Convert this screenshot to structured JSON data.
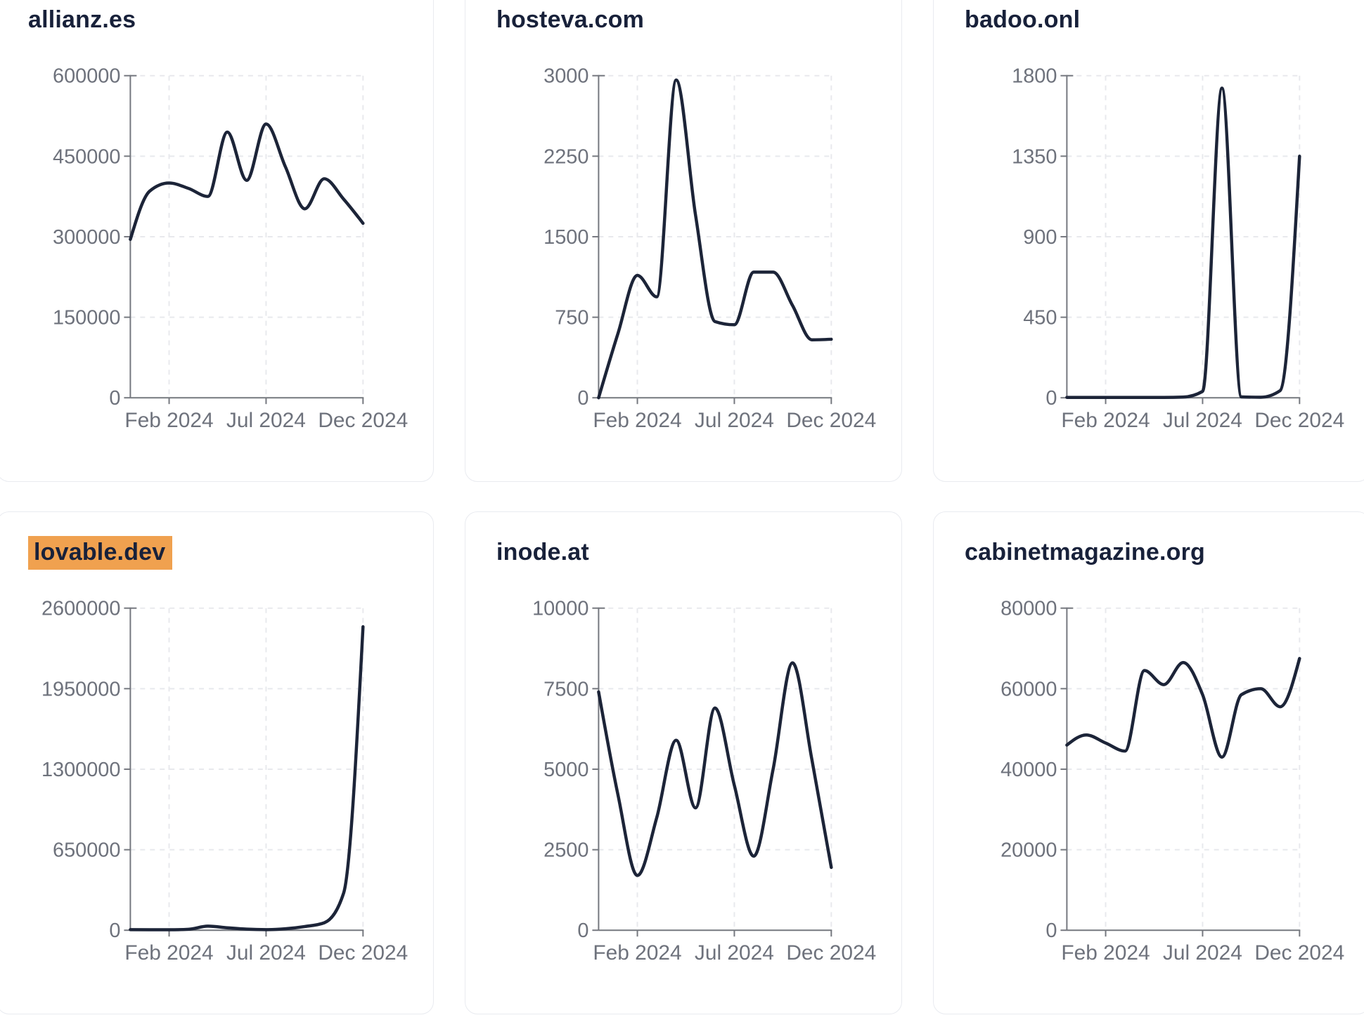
{
  "theme": {
    "page_background": "#ffffff",
    "card_background": "#ffffff",
    "card_border_color": "#e9ebf0",
    "title_color": "#18213a",
    "highlight_color": "#f0a14f",
    "line_color": "#1c2438",
    "axis_color": "#75787f",
    "grid_color": "#e8e9ed",
    "tick_label_color": "#6e727c"
  },
  "x_axis": {
    "tick_labels": [
      "Feb 2024",
      "Jul 2024",
      "Dec 2024"
    ],
    "tick_indices": [
      2,
      7,
      12
    ]
  },
  "months": [
    "Dec 2023",
    "Jan 2024",
    "Feb 2024",
    "Mar 2024",
    "Apr 2024",
    "May 2024",
    "Jun 2024",
    "Jul 2024",
    "Aug 2024",
    "Sep 2024",
    "Oct 2024",
    "Nov 2024",
    "Dec 2024"
  ],
  "chart_data": [
    {
      "type": "line",
      "title": "allianz.es",
      "highlighted": false,
      "x": [
        "Dec 2023",
        "Jan 2024",
        "Feb 2024",
        "Mar 2024",
        "Apr 2024",
        "May 2024",
        "Jun 2024",
        "Jul 2024",
        "Aug 2024",
        "Sep 2024",
        "Oct 2024",
        "Nov 2024",
        "Dec 2024"
      ],
      "values": [
        295000,
        385000,
        400000,
        390000,
        375000,
        495000,
        405000,
        510000,
        430000,
        352000,
        408000,
        370000,
        325000
      ],
      "y_ticks": [
        0,
        150000,
        300000,
        450000,
        600000
      ],
      "ylim": [
        0,
        600000
      ],
      "xlabel": "",
      "ylabel": "",
      "grid": true,
      "legend": false
    },
    {
      "type": "line",
      "title": "hosteva.com",
      "highlighted": false,
      "x": [
        "Dec 2023",
        "Jan 2024",
        "Feb 2024",
        "Mar 2024",
        "Apr 2024",
        "May 2024",
        "Jun 2024",
        "Jul 2024",
        "Aug 2024",
        "Sep 2024",
        "Oct 2024",
        "Nov 2024",
        "Dec 2024"
      ],
      "values": [
        0,
        600,
        1140,
        940,
        2960,
        1700,
        710,
        680,
        1170,
        1170,
        860,
        540,
        545
      ],
      "y_ticks": [
        0,
        750,
        1500,
        2250,
        3000
      ],
      "ylim": [
        0,
        3000
      ],
      "xlabel": "",
      "ylabel": "",
      "grid": true,
      "legend": false
    },
    {
      "type": "line",
      "title": "badoo.onl",
      "highlighted": false,
      "x": [
        "Dec 2023",
        "Jan 2024",
        "Feb 2024",
        "Mar 2024",
        "Apr 2024",
        "May 2024",
        "Jun 2024",
        "Jul 2024",
        "Aug 2024",
        "Sep 2024",
        "Oct 2024",
        "Nov 2024",
        "Dec 2024"
      ],
      "values": [
        2,
        2,
        2,
        2,
        2,
        2,
        4,
        36,
        1730,
        5,
        3,
        40,
        1350
      ],
      "y_ticks": [
        0,
        450,
        900,
        1350,
        1800
      ],
      "ylim": [
        0,
        1800
      ],
      "xlabel": "",
      "ylabel": "",
      "grid": true,
      "legend": false
    },
    {
      "type": "line",
      "title": "lovable.dev",
      "highlighted": true,
      "x": [
        "Dec 2023",
        "Jan 2024",
        "Feb 2024",
        "Mar 2024",
        "Apr 2024",
        "May 2024",
        "Jun 2024",
        "Jul 2024",
        "Aug 2024",
        "Sep 2024",
        "Oct 2024",
        "Nov 2024",
        "Dec 2024"
      ],
      "values": [
        5000,
        4000,
        4000,
        8000,
        33000,
        20000,
        9000,
        5000,
        12000,
        30000,
        60000,
        300000,
        2450000
      ],
      "y_ticks": [
        0,
        650000,
        1300000,
        1950000,
        2600000
      ],
      "ylim": [
        0,
        2600000
      ],
      "xlabel": "",
      "ylabel": "",
      "grid": true,
      "legend": false
    },
    {
      "type": "line",
      "title": "inode.at",
      "highlighted": false,
      "x": [
        "Dec 2023",
        "Jan 2024",
        "Feb 2024",
        "Mar 2024",
        "Apr 2024",
        "May 2024",
        "Jun 2024",
        "Jul 2024",
        "Aug 2024",
        "Sep 2024",
        "Oct 2024",
        "Nov 2024",
        "Dec 2024"
      ],
      "values": [
        7400,
        4200,
        1700,
        3500,
        5900,
        3800,
        6900,
        4500,
        2300,
        5000,
        8300,
        5300,
        1950
      ],
      "y_ticks": [
        0,
        2500,
        5000,
        7500,
        10000
      ],
      "ylim": [
        0,
        10000
      ],
      "xlabel": "",
      "ylabel": "",
      "grid": true,
      "legend": false
    },
    {
      "type": "line",
      "title": "cabinetmagazine.org",
      "highlighted": false,
      "x": [
        "Dec 2023",
        "Jan 2024",
        "Feb 2024",
        "Mar 2024",
        "Apr 2024",
        "May 2024",
        "Jun 2024",
        "Jul 2024",
        "Aug 2024",
        "Sep 2024",
        "Oct 2024",
        "Nov 2024",
        "Dec 2024"
      ],
      "values": [
        46000,
        48500,
        46500,
        44500,
        64500,
        61000,
        66500,
        58500,
        43000,
        58500,
        60000,
        55500,
        67500
      ],
      "y_ticks": [
        0,
        20000,
        40000,
        60000,
        80000
      ],
      "ylim": [
        0,
        80000
      ],
      "xlabel": "",
      "ylabel": "",
      "grid": true,
      "legend": false
    }
  ]
}
